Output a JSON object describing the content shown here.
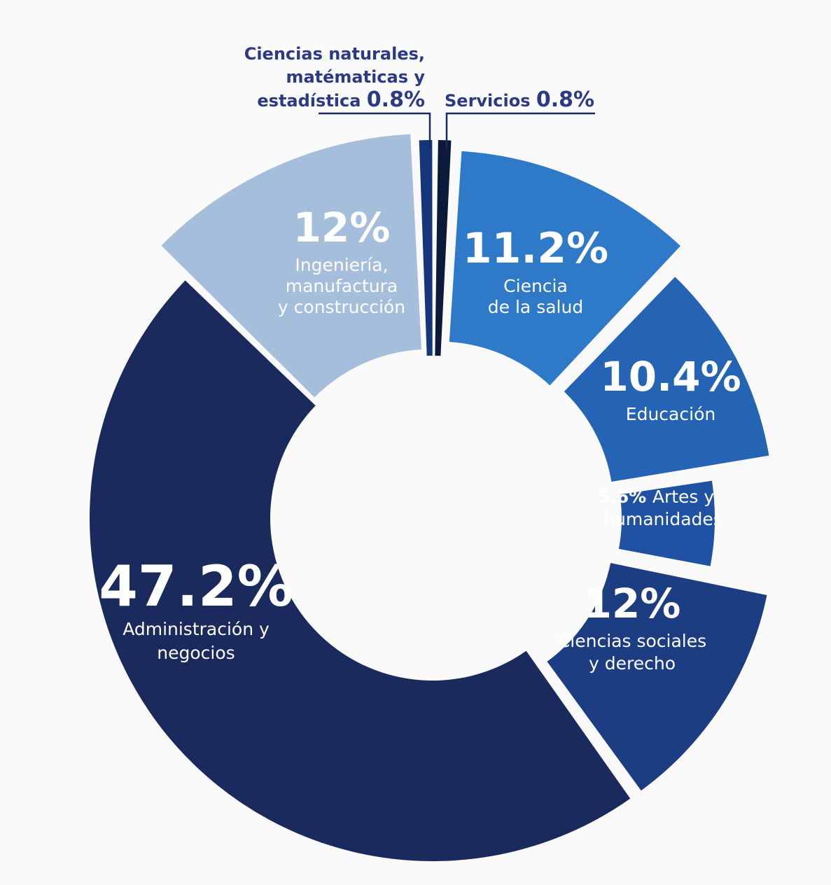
{
  "chart_data": {
    "type": "pie",
    "variant": "donut",
    "title": "",
    "legend": "none",
    "slices": [
      {
        "value_label": "0.8%",
        "value": 0.8,
        "label": [
          "Ciencias naturales,",
          "matématicas y",
          "estadística"
        ],
        "color": "#15367a"
      },
      {
        "value_label": "0.8%",
        "value": 0.8,
        "label": [
          "Servicios"
        ],
        "color": "#0c1a3a"
      },
      {
        "value_label": "11.2%",
        "value": 11.2,
        "label": [
          "Ciencia",
          "de la salud"
        ],
        "color": "#2f7ac8"
      },
      {
        "value_label": "10.4%",
        "value": 10.4,
        "label": [
          "Educación"
        ],
        "color": "#2563b5"
      },
      {
        "value_label": "5.6%",
        "value": 5.6,
        "label": [
          "Artes y",
          "humanidades"
        ],
        "color": "#1f52a3"
      },
      {
        "value_label": "12%",
        "value": 12,
        "label": [
          "Ciencias sociales",
          "y derecho"
        ],
        "color": "#1d3d82"
      },
      {
        "value_label": "47.2%",
        "value": 47.2,
        "label": [
          "Administración y",
          "negocios"
        ],
        "color": "#1b2a5c"
      },
      {
        "value_label": "12%",
        "value": 12,
        "label": [
          "Ingeniería,",
          "manufactura",
          "y construcción"
        ],
        "color": "#a4bedb"
      }
    ]
  }
}
